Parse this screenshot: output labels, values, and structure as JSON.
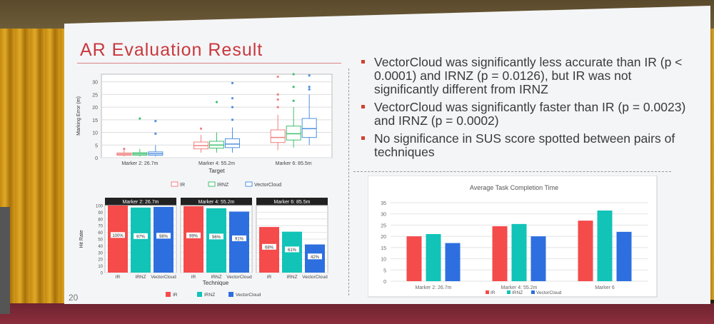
{
  "slide": {
    "title": "AR Evaluation Result",
    "page_number": "20",
    "accent_color": "#c9383c",
    "bullets": [
      "VectorCloud was significantly less accurate than IR (p < 0.0001) and IRNZ (p = 0.0126), but IR was not significantly different from IRNZ",
      "VectorCloud was significantly faster than IR (p = 0.0023) and IRNZ (p = 0.0002)",
      "No significance in SUS score spotted between pairs of techniques"
    ]
  },
  "chart_data": [
    {
      "type": "box",
      "xlabel": "Target",
      "ylabel": "Marking Error (m)",
      "ylim": [
        0,
        33
      ],
      "yticks": [
        0,
        5,
        10,
        15,
        20,
        25,
        30
      ],
      "categories": [
        "Marker 2: 26.7m",
        "Marker 4: 55.2m",
        "Marker 6: 85.5m"
      ],
      "legend": [
        "IR",
        "IRNZ",
        "VectorCloud"
      ],
      "colors": [
        "#f08080",
        "#40c070",
        "#5090e0"
      ],
      "boxes": [
        [
          {
            "min": 0.5,
            "q1": 1.0,
            "median": 1.4,
            "q3": 1.9,
            "max": 3.0,
            "outliers": [
              3.5
            ]
          },
          {
            "min": 0.5,
            "q1": 1.0,
            "median": 1.5,
            "q3": 2.0,
            "max": 3.5,
            "outliers": [
              15.5
            ]
          },
          {
            "min": 0.5,
            "q1": 1.0,
            "median": 1.6,
            "q3": 2.3,
            "max": 5,
            "outliers": [
              9.5,
              14.5
            ]
          }
        ],
        [
          {
            "min": 2,
            "q1": 3.5,
            "median": 4.8,
            "q3": 6.2,
            "max": 9,
            "outliers": [
              11.5
            ]
          },
          {
            "min": 2,
            "q1": 3.8,
            "median": 5.0,
            "q3": 6.5,
            "max": 10,
            "outliers": [
              22
            ]
          },
          {
            "min": 2,
            "q1": 4.0,
            "median": 5.4,
            "q3": 7.5,
            "max": 12,
            "outliers": [
              15,
              20,
              23.5,
              29.5
            ]
          }
        ],
        [
          {
            "min": 3,
            "q1": 6,
            "median": 8,
            "q3": 11,
            "max": 17,
            "outliers": [
              20,
              23,
              25,
              32
            ]
          },
          {
            "min": 4,
            "q1": 7,
            "median": 9.5,
            "q3": 12.5,
            "max": 20,
            "outliers": [
              22.5,
              28,
              33
            ]
          },
          {
            "min": 5,
            "q1": 8,
            "median": 11.5,
            "q3": 15.5,
            "max": 25,
            "outliers": [
              27,
              28,
              32.5
            ]
          }
        ]
      ]
    },
    {
      "type": "bar",
      "xlabel": "Technique",
      "ylabel": "Hit Rate",
      "ylim": [
        0,
        100
      ],
      "yticks": [
        0,
        10,
        20,
        30,
        40,
        50,
        60,
        70,
        80,
        90,
        100
      ],
      "techniques": [
        "IR",
        "IRNZ",
        "VectorCloud"
      ],
      "colors": [
        "#f54b4b",
        "#12c3b8",
        "#2e6fe0"
      ],
      "panels": [
        {
          "title": "Marker 2: 26.7m",
          "values": [
            100,
            97,
            98
          ],
          "labels": [
            "100%",
            "97%",
            "98%"
          ]
        },
        {
          "title": "Marker 4: 55.2m",
          "values": [
            99,
            96,
            91
          ],
          "labels": [
            "99%",
            "96%",
            "91%"
          ]
        },
        {
          "title": "Marker 6: 85.5m",
          "values": [
            68,
            61,
            42
          ],
          "labels": [
            "68%",
            "61%",
            "42%"
          ]
        }
      ]
    },
    {
      "type": "bar",
      "title": "Average Task Completion Time",
      "ylim": [
        0,
        35
      ],
      "yticks": [
        0,
        5,
        10,
        15,
        20,
        25,
        30,
        35
      ],
      "categories": [
        "Marker 2: 26.7m",
        "Marker 4: 55.2m",
        "Marker 6"
      ],
      "series": [
        {
          "name": "IR",
          "color": "#f54b4b",
          "values": [
            20,
            24.5,
            27
          ]
        },
        {
          "name": "IRNZ",
          "color": "#12c3b8",
          "values": [
            21,
            25.5,
            31.5
          ]
        },
        {
          "name": "VectorCloud",
          "color": "#2e6fe0",
          "values": [
            17,
            20,
            22
          ]
        }
      ]
    }
  ]
}
